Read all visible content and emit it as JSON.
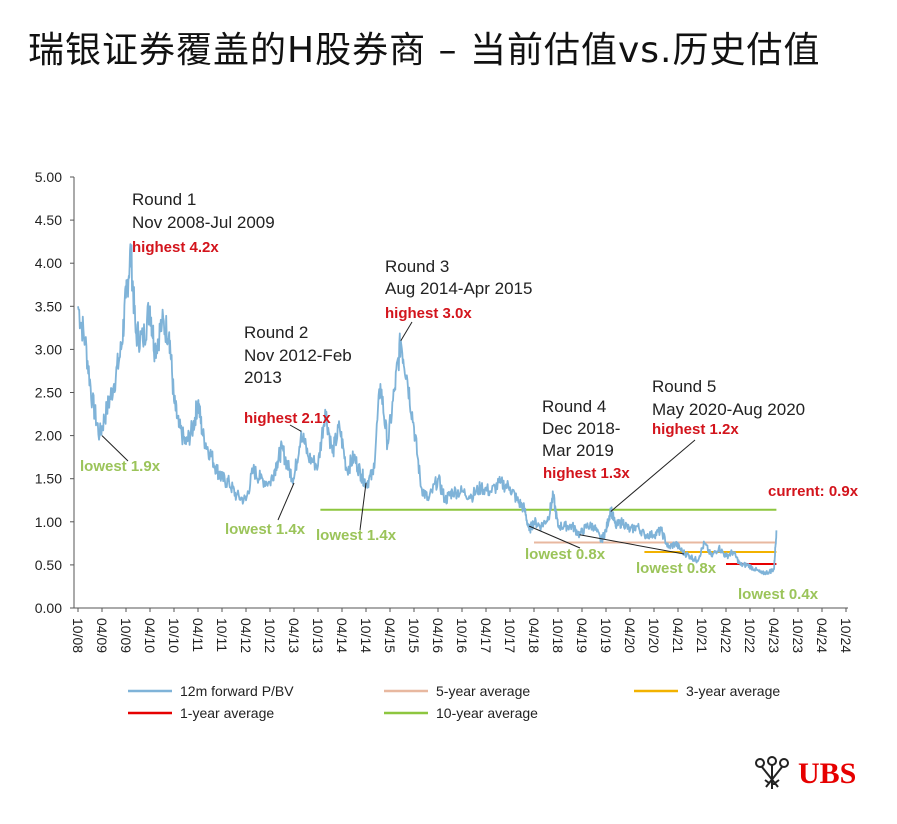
{
  "title": "瑞银证券覆盖的H股券商 – 当前估值vs.历史估值",
  "logo": {
    "text": "UBS"
  },
  "chart_data": {
    "type": "line",
    "ylim": [
      0,
      5
    ],
    "y_ticks": [
      "5.00",
      "4.50",
      "4.00",
      "3.50",
      "3.00",
      "2.50",
      "2.00",
      "1.50",
      "1.00",
      "0.50",
      "0.00"
    ],
    "x_ticks": [
      "10/08",
      "04/09",
      "10/09",
      "04/10",
      "10/10",
      "04/11",
      "10/11",
      "04/12",
      "10/12",
      "04/13",
      "10/13",
      "04/14",
      "10/14",
      "04/15",
      "10/15",
      "04/16",
      "10/16",
      "04/17",
      "10/17",
      "04/18",
      "10/18",
      "04/19",
      "10/19",
      "04/20",
      "10/20",
      "04/21",
      "10/21",
      "04/22",
      "10/22",
      "04/23",
      "10/23",
      "04/24",
      "10/24"
    ],
    "series": [
      {
        "name": "12m forward P/BV",
        "color": "#7fb3d8",
        "points": [
          [
            0,
            3.5
          ],
          [
            0.3,
            3.1
          ],
          [
            0.6,
            2.4
          ],
          [
            0.9,
            2.0
          ],
          [
            1.2,
            2.3
          ],
          [
            1.5,
            2.6
          ],
          [
            1.8,
            3.0
          ],
          [
            2.0,
            3.6
          ],
          [
            2.2,
            4.15
          ],
          [
            2.4,
            3.2
          ],
          [
            2.7,
            3.1
          ],
          [
            3.0,
            3.5
          ],
          [
            3.2,
            3.0
          ],
          [
            3.5,
            3.3
          ],
          [
            3.8,
            3.2
          ],
          [
            4.0,
            2.4
          ],
          [
            4.2,
            2.1
          ],
          [
            4.5,
            1.9
          ],
          [
            4.8,
            2.1
          ],
          [
            5.0,
            2.4
          ],
          [
            5.2,
            2.0
          ],
          [
            5.5,
            1.8
          ],
          [
            5.8,
            1.6
          ],
          [
            6.0,
            1.5
          ],
          [
            6.3,
            1.45
          ],
          [
            6.6,
            1.3
          ],
          [
            7.0,
            1.25
          ],
          [
            7.3,
            1.6
          ],
          [
            7.6,
            1.5
          ],
          [
            8.0,
            1.45
          ],
          [
            8.3,
            1.7
          ],
          [
            8.5,
            1.85
          ],
          [
            8.8,
            1.6
          ],
          [
            9.0,
            1.5
          ],
          [
            9.3,
            2.05
          ],
          [
            9.6,
            1.75
          ],
          [
            10.0,
            1.65
          ],
          [
            10.3,
            2.3
          ],
          [
            10.6,
            1.8
          ],
          [
            10.9,
            2.1
          ],
          [
            11.2,
            1.6
          ],
          [
            11.5,
            1.75
          ],
          [
            11.8,
            1.55
          ],
          [
            12.0,
            1.45
          ],
          [
            12.3,
            1.55
          ],
          [
            12.6,
            2.6
          ],
          [
            12.9,
            1.9
          ],
          [
            13.2,
            2.55
          ],
          [
            13.45,
            3.1
          ],
          [
            13.7,
            2.7
          ],
          [
            14.0,
            2.1
          ],
          [
            14.3,
            1.4
          ],
          [
            14.6,
            1.25
          ],
          [
            15.0,
            1.5
          ],
          [
            15.3,
            1.25
          ],
          [
            15.6,
            1.35
          ],
          [
            16.0,
            1.35
          ],
          [
            16.4,
            1.3
          ],
          [
            16.8,
            1.4
          ],
          [
            17.2,
            1.35
          ],
          [
            17.6,
            1.45
          ],
          [
            18.0,
            1.4
          ],
          [
            18.3,
            1.25
          ],
          [
            18.6,
            1.15
          ],
          [
            18.8,
            0.9
          ],
          [
            19.0,
            1.0
          ],
          [
            19.3,
            0.95
          ],
          [
            19.6,
            1.05
          ],
          [
            19.8,
            1.3
          ],
          [
            20.0,
            0.95
          ],
          [
            20.3,
            0.95
          ],
          [
            20.6,
            0.95
          ],
          [
            20.9,
            0.85
          ],
          [
            21.2,
            0.95
          ],
          [
            21.5,
            0.95
          ],
          [
            21.8,
            0.78
          ],
          [
            22.0,
            0.9
          ],
          [
            22.2,
            1.15
          ],
          [
            22.4,
            0.95
          ],
          [
            22.7,
            1.0
          ],
          [
            23.0,
            0.9
          ],
          [
            23.3,
            0.95
          ],
          [
            23.6,
            0.85
          ],
          [
            24.0,
            0.85
          ],
          [
            24.3,
            0.9
          ],
          [
            24.6,
            0.7
          ],
          [
            24.9,
            0.75
          ],
          [
            25.2,
            0.65
          ],
          [
            25.5,
            0.6
          ],
          [
            25.8,
            0.55
          ],
          [
            26.1,
            0.75
          ],
          [
            26.4,
            0.6
          ],
          [
            26.7,
            0.7
          ],
          [
            27.0,
            0.6
          ],
          [
            27.3,
            0.65
          ],
          [
            27.6,
            0.5
          ],
          [
            27.9,
            0.5
          ],
          [
            28.2,
            0.45
          ],
          [
            28.5,
            0.4
          ],
          [
            28.8,
            0.42
          ],
          [
            29.0,
            0.45
          ],
          [
            29.1,
            0.9
          ]
        ]
      }
    ],
    "reference_lines": [
      {
        "name": "10-year average",
        "color": "#8dc63f",
        "value": 1.14,
        "x_range": [
          10.1,
          29.1
        ]
      },
      {
        "name": "5-year average",
        "color": "#e8b8a0",
        "value": 0.76,
        "x_range": [
          19.0,
          29.1
        ]
      },
      {
        "name": "3-year average",
        "color": "#f2b200",
        "value": 0.65,
        "x_range": [
          23.6,
          29.1
        ]
      },
      {
        "name": "1-year average",
        "color": "#e60000",
        "value": 0.51,
        "x_range": [
          27.0,
          29.1
        ]
      }
    ],
    "legend": [
      {
        "label": "12m forward P/BV",
        "color": "#7fb3d8"
      },
      {
        "label": "5-year average",
        "color": "#e8b8a0"
      },
      {
        "label": "3-year average",
        "color": "#f2b200"
      },
      {
        "label": "1-year average",
        "color": "#e60000"
      },
      {
        "label": "10-year average",
        "color": "#8dc63f"
      }
    ],
    "annotations": {
      "round1": {
        "line1": "Round 1",
        "line2": "Nov 2008-Jul 2009",
        "high": "highest 4.2x",
        "low": "lowest 1.9x"
      },
      "round2": {
        "line1": "Round 2",
        "line2": "Nov 2012-Feb",
        "line3": "2013",
        "high": "highest 2.1x",
        "low": "lowest 1.4x"
      },
      "round3": {
        "line1": "Round 3",
        "line2": "Aug 2014-Apr 2015",
        "high": "highest 3.0x",
        "low": "lowest 1.4x"
      },
      "round4": {
        "line1": "Round 4",
        "line2": "Dec 2018-",
        "line3": "Mar 2019",
        "high": "highest 1.3x",
        "low": "lowest 0.8x"
      },
      "round5": {
        "line1": "Round 5",
        "line2": "May 2020-Aug 2020",
        "high": "highest 1.2x",
        "low": "lowest 0.8x"
      },
      "current": "current: 0.9x",
      "lowest_recent": "lowest 0.4x"
    }
  }
}
